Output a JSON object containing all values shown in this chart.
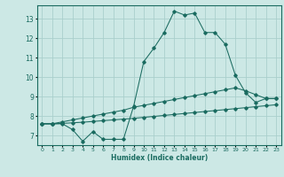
{
  "xlabel": "Humidex (Indice chaleur)",
  "bg_color": "#cce8e5",
  "grid_color": "#aacfcc",
  "line_color": "#1a6b60",
  "xlim": [
    -0.5,
    23.5
  ],
  "ylim": [
    6.5,
    13.7
  ],
  "yticks": [
    7,
    8,
    9,
    10,
    11,
    12,
    13
  ],
  "xticks": [
    0,
    1,
    2,
    3,
    4,
    5,
    6,
    7,
    8,
    9,
    10,
    11,
    12,
    13,
    14,
    15,
    16,
    17,
    18,
    19,
    20,
    21,
    22,
    23
  ],
  "series1_x": [
    0,
    1,
    2,
    3,
    4,
    5,
    6,
    7,
    8,
    9,
    10,
    11,
    12,
    13,
    14,
    15,
    16,
    17,
    18,
    19,
    20,
    21,
    22,
    23
  ],
  "series1_y": [
    7.6,
    7.6,
    7.6,
    7.3,
    6.7,
    7.2,
    6.8,
    6.8,
    6.8,
    8.5,
    10.8,
    11.5,
    12.3,
    13.4,
    13.2,
    13.3,
    12.3,
    12.3,
    11.7,
    10.1,
    9.2,
    8.7,
    8.9,
    8.9
  ],
  "series2_x": [
    0,
    1,
    2,
    3,
    4,
    5,
    6,
    7,
    8,
    9,
    10,
    11,
    12,
    13,
    14,
    15,
    16,
    17,
    18,
    19,
    20,
    21,
    22,
    23
  ],
  "series2_y": [
    7.6,
    7.6,
    7.7,
    7.8,
    7.9,
    8.0,
    8.1,
    8.2,
    8.3,
    8.45,
    8.55,
    8.65,
    8.75,
    8.85,
    8.95,
    9.05,
    9.15,
    9.25,
    9.35,
    9.45,
    9.3,
    9.1,
    8.9,
    8.9
  ],
  "series3_x": [
    0,
    1,
    2,
    3,
    4,
    5,
    6,
    7,
    8,
    9,
    10,
    11,
    12,
    13,
    14,
    15,
    16,
    17,
    18,
    19,
    20,
    21,
    22,
    23
  ],
  "series3_y": [
    7.6,
    7.6,
    7.62,
    7.65,
    7.68,
    7.72,
    7.76,
    7.8,
    7.84,
    7.88,
    7.93,
    7.98,
    8.03,
    8.08,
    8.13,
    8.18,
    8.23,
    8.28,
    8.33,
    8.38,
    8.43,
    8.48,
    8.53,
    8.58
  ]
}
